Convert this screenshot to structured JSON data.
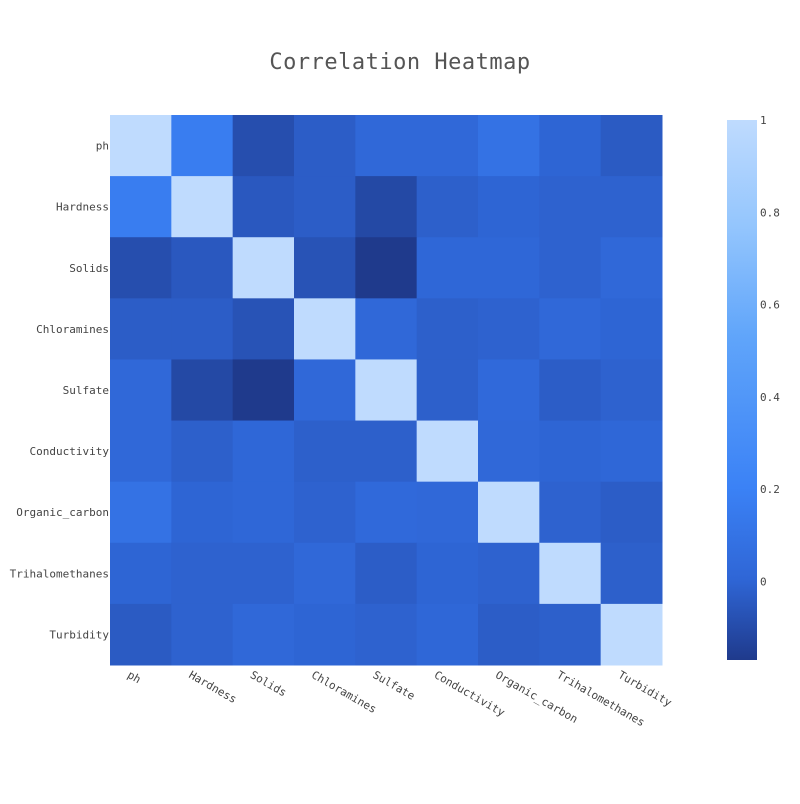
{
  "chart_data": {
    "type": "heatmap",
    "title": "Correlation Heatmap",
    "x_categories": [
      "ph",
      "Hardness",
      "Solids",
      "Chloramines",
      "Sulfate",
      "Conductivity",
      "Organic_carbon",
      "Trihalomethanes",
      "Turbidity"
    ],
    "y_categories": [
      "ph",
      "Hardness",
      "Solids",
      "Chloramines",
      "Sulfate",
      "Conductivity",
      "Organic_carbon",
      "Trihalomethanes",
      "Turbidity"
    ],
    "z": [
      [
        1.0,
        0.17,
        -0.09,
        -0.03,
        0.02,
        0.02,
        0.09,
        0.0,
        -0.04
      ],
      [
        0.17,
        1.0,
        -0.05,
        -0.03,
        -0.11,
        -0.02,
        0.0,
        -0.01,
        -0.01
      ],
      [
        -0.09,
        -0.05,
        1.0,
        -0.07,
        -0.17,
        0.01,
        0.01,
        -0.01,
        0.02
      ],
      [
        -0.03,
        -0.03,
        -0.07,
        1.0,
        0.02,
        -0.02,
        -0.01,
        0.02,
        0.0
      ],
      [
        0.02,
        -0.11,
        -0.17,
        0.02,
        1.0,
        -0.02,
        0.03,
        -0.03,
        -0.01
      ],
      [
        0.02,
        -0.02,
        0.01,
        -0.02,
        -0.02,
        1.0,
        0.02,
        0.0,
        0.01
      ],
      [
        0.09,
        0.0,
        0.01,
        -0.01,
        0.03,
        0.02,
        1.0,
        -0.01,
        -0.03
      ],
      [
        0.0,
        -0.01,
        -0.01,
        0.02,
        -0.03,
        0.0,
        -0.01,
        1.0,
        -0.02
      ],
      [
        -0.04,
        -0.01,
        0.02,
        0.0,
        -0.01,
        0.01,
        -0.03,
        -0.02,
        1.0
      ]
    ],
    "zlim": [
      -0.17,
      1
    ],
    "colorbar": {
      "ticks": [
        0,
        0.2,
        0.4,
        0.6,
        0.8,
        1
      ],
      "tick_labels": [
        "0",
        "0.2",
        "0.4",
        "0.6",
        "0.8",
        "1"
      ]
    },
    "colorscale": [
      [
        0.0,
        "#1f3a8c"
      ],
      [
        0.15,
        "#2f66d6"
      ],
      [
        0.32,
        "#3b82f6"
      ],
      [
        0.6,
        "#60a5fa"
      ],
      [
        0.8,
        "#93c5fd"
      ],
      [
        1.0,
        "#bfdbfe"
      ]
    ],
    "xlabel": "",
    "ylabel": ""
  },
  "colors": {
    "title": "#555555",
    "tick_text": "#444444"
  }
}
